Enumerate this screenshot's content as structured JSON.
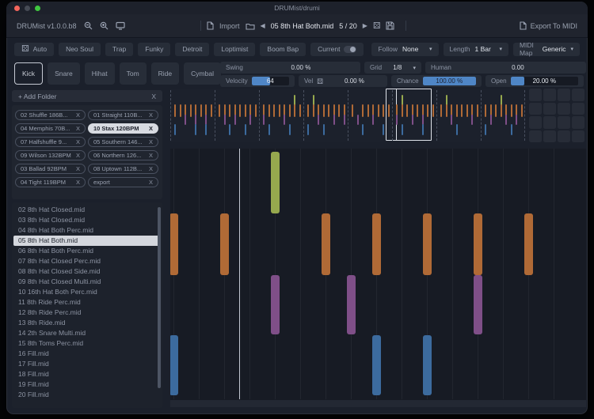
{
  "window": {
    "title": "DRUMist/drumi"
  },
  "toolbar": {
    "app_version": "DRUMist v1.0.0.b8",
    "import_label": "Import",
    "file_name": "05 8th Hat Both.mid",
    "file_index": "5 / 20",
    "export_label": "Export To MIDI"
  },
  "style_bar": {
    "auto_label": "Auto",
    "styles": [
      "Neo Soul",
      "Trap",
      "Funky",
      "Detroit",
      "Loptimist",
      "Boom Bap"
    ],
    "current_label": "Current",
    "follow": {
      "label": "Follow",
      "value": "None"
    },
    "length": {
      "label": "Length",
      "value": "1 Bar"
    },
    "midi_map": {
      "label": "MIDI Map",
      "value": "Generic"
    }
  },
  "kit_tabs": {
    "items": [
      "Kick",
      "Snare",
      "Hihat",
      "Tom",
      "Ride",
      "Cymbal"
    ],
    "selected": "Kick"
  },
  "params": {
    "swing": {
      "label": "Swing",
      "value": "0.00 %"
    },
    "grid": {
      "label": "Grid",
      "value": "1/8"
    },
    "human": {
      "label": "Human",
      "value": "0.00"
    },
    "velocity": {
      "label": "Velocity",
      "value": "64",
      "fill": "50%"
    },
    "vel": {
      "label": "Vel",
      "value": "0.00 %"
    },
    "chance": {
      "label": "Chance",
      "value": "100.00 %",
      "fill": "100%"
    },
    "open": {
      "label": "Open",
      "value": "20.00 %",
      "fill": "20%"
    }
  },
  "sidebar": {
    "add_folder_label": "+ Add Folder",
    "header_close_label": "X",
    "chip_close_label": "X",
    "folders": [
      {
        "label": "02 Shuffle 186B...",
        "selected": false
      },
      {
        "label": "01 Straight 110B...",
        "selected": false
      },
      {
        "label": "04 Memphis 70B...",
        "selected": false
      },
      {
        "label": "10 Stax 120BPM",
        "selected": true
      },
      {
        "label": "07 Halfshuffle 9...",
        "selected": false
      },
      {
        "label": "05 Southern 146...",
        "selected": false
      },
      {
        "label": "09 Wilson 132BPM",
        "selected": false
      },
      {
        "label": "06 Northern 126...",
        "selected": false
      },
      {
        "label": "03 Ballad 92BPM",
        "selected": false
      },
      {
        "label": "08 Uptown 112B...",
        "selected": false
      },
      {
        "label": "04 Tight 119BPM",
        "selected": false
      },
      {
        "label": "export",
        "selected": false
      }
    ],
    "selected_file_index": 3,
    "files": [
      "02 8th Hat Closed.mid",
      "03 8th Hat Closed.mid",
      "04 8th Hat Both Perc.mid",
      "05 8th Hat Both.mid",
      "06 8th Hat Both Perc.mid",
      "07 8th Hat Closed Perc.mid",
      "08 8th Hat Closed Side.mid",
      "09 8th Hat Closed Multi.mid",
      "10 16th Hat Both Perc.mid",
      "11 8th Ride Perc.mid",
      "12 8th Ride Perc.mid",
      "13 8th Ride.mid",
      "14 2th Snare Multi.mid",
      "15 8th Toms Perc.mid",
      "16 Fill.mid",
      "17 Fill.mid",
      "18 Fill.mid",
      "19 Fill.mid",
      "20 Fill.mid"
    ]
  },
  "pad_grid": {
    "rows": 4,
    "cols": 4
  },
  "pattern_editor": {
    "columns": 16,
    "lanes": [
      {
        "name": "olive",
        "color": "#96a84e",
        "notes": [
          4
        ]
      },
      {
        "name": "orange",
        "color": "#b06a36",
        "notes": [
          0,
          2,
          6,
          8,
          10,
          12,
          14
        ]
      },
      {
        "name": "purple",
        "color": "#7f4f88",
        "notes": [
          4,
          7,
          12
        ]
      },
      {
        "name": "blue",
        "color": "#3c6b9e",
        "notes": [
          0,
          8,
          10
        ]
      }
    ],
    "overview": {
      "sections": [
        {
          "orange": [
            0,
            1,
            2,
            3,
            4,
            5,
            6,
            7
          ],
          "purple": [
            2,
            4,
            6
          ],
          "blue": [
            0,
            4,
            6
          ],
          "olive": []
        },
        {
          "orange": [
            0,
            1,
            2,
            3,
            4,
            5,
            6,
            7
          ],
          "purple": [
            1,
            3,
            6
          ],
          "blue": [
            2,
            5
          ],
          "olive": []
        },
        {
          "orange": [
            0,
            1,
            2,
            3,
            4,
            5,
            6,
            7
          ],
          "purple": [
            0,
            4
          ],
          "blue": [
            1,
            5
          ],
          "olive": [
            6
          ]
        },
        {
          "orange": [
            0,
            1,
            2,
            3,
            4,
            5,
            6,
            7
          ],
          "purple": [
            2,
            5,
            7
          ],
          "blue": [
            0,
            3
          ],
          "olive": [
            1
          ]
        },
        {
          "orange": [
            0,
            2,
            3,
            4,
            5,
            6,
            7
          ],
          "purple": [
            1,
            4
          ],
          "blue": [
            2,
            6
          ],
          "olive": []
        },
        {
          "orange": [
            0,
            1,
            2,
            3,
            4,
            5,
            6,
            7
          ],
          "purple": [
            0,
            3,
            5
          ],
          "blue": [
            1,
            5
          ],
          "olive": [
            1
          ]
        },
        {
          "orange": [
            0,
            1,
            2,
            3,
            4,
            5,
            6,
            7
          ],
          "purple": [
            2,
            6
          ],
          "blue": [
            3
          ],
          "olive": [
            1
          ]
        },
        {
          "orange": [
            0,
            1,
            2,
            3,
            4,
            5,
            6,
            7
          ],
          "purple": [
            1,
            4,
            6
          ],
          "blue": [
            0,
            5
          ],
          "olive": [
            3
          ]
        }
      ]
    }
  },
  "colors": {
    "accent_blue": "#4f86c6",
    "selection": "#d7dae0",
    "traffic_red": "#f3655c",
    "traffic_mid": "#464b55",
    "traffic_green": "#40c840"
  }
}
